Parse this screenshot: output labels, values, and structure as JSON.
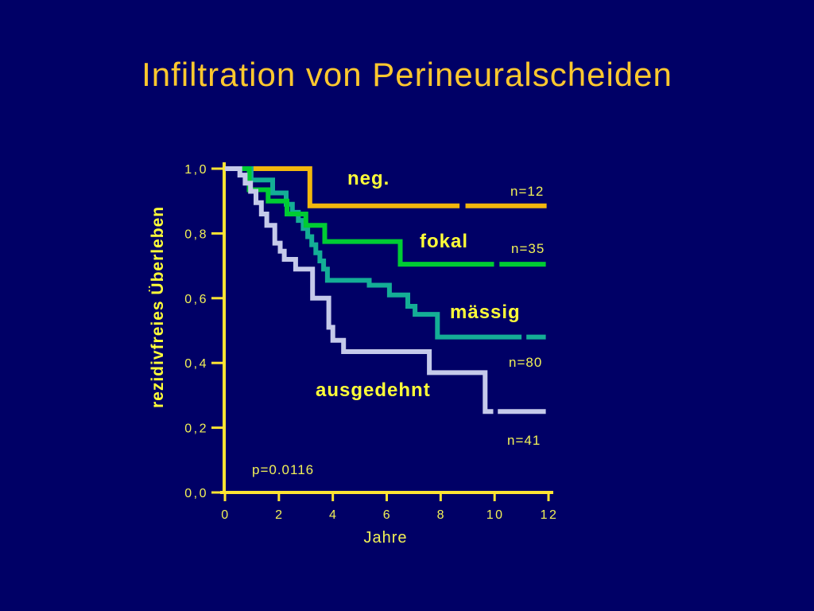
{
  "slide": {
    "title": "Infiltration von Perineuralscheiden",
    "background_color": "#000066",
    "title_color": "#FFC82E"
  },
  "chart_data": {
    "type": "line",
    "subtype": "kaplan-meier-step-curves",
    "title": "Infiltration von Perineuralscheiden",
    "xlabel": "Jahre",
    "ylabel": "rezidivfreies Überleben",
    "p_value": "p=0.0116",
    "xlim": [
      0,
      12
    ],
    "ylim": [
      0.0,
      1.0
    ],
    "grid": "off",
    "legend_position": "labels-inline-on-chart",
    "axis_color": "#FFE433",
    "tick_label_color": "#F2F156",
    "series_label_color": "#FFFF38",
    "x_ticks": [
      0,
      2,
      4,
      6,
      8,
      10,
      12
    ],
    "x_tick_labels": [
      "0",
      "2",
      "4",
      "6",
      "8",
      "10",
      "12"
    ],
    "y_ticks": [
      1.0,
      0.8,
      0.6,
      0.4,
      0.2,
      0.0
    ],
    "y_tick_labels": [
      "1,0",
      "0,8",
      "0,6",
      "0,4",
      "0,2",
      "0,0"
    ],
    "series": [
      {
        "name": "neg.",
        "n_label": "n=12",
        "color": "#F2B70D",
        "steps": [
          [
            0,
            1.0
          ],
          [
            3.15,
            0.885
          ]
        ],
        "end": 11.93,
        "censor_gap": [
          8.7,
          8.92
        ]
      },
      {
        "name": "fokal",
        "n_label": "n=35",
        "color": "#00CC33",
        "steps": [
          [
            0,
            1.0
          ],
          [
            0.9,
            0.935
          ],
          [
            1.6,
            0.9
          ],
          [
            2.3,
            0.86
          ],
          [
            3.0,
            0.825
          ],
          [
            3.7,
            0.775
          ],
          [
            6.5,
            0.705
          ]
        ],
        "end": 11.9,
        "censor_gap": [
          9.98,
          10.18
        ]
      },
      {
        "name": "mässig",
        "n_label": "n=80",
        "color": "#14AE96",
        "steps": [
          [
            0,
            1.0
          ],
          [
            0.97,
            0.965
          ],
          [
            1.77,
            0.925
          ],
          [
            2.27,
            0.89
          ],
          [
            2.5,
            0.865
          ],
          [
            2.72,
            0.84
          ],
          [
            2.9,
            0.815
          ],
          [
            3.07,
            0.79
          ],
          [
            3.22,
            0.765
          ],
          [
            3.37,
            0.74
          ],
          [
            3.52,
            0.715
          ],
          [
            3.66,
            0.69
          ],
          [
            3.8,
            0.655
          ],
          [
            5.35,
            0.64
          ],
          [
            6.1,
            0.61
          ],
          [
            6.78,
            0.575
          ],
          [
            7.05,
            0.55
          ],
          [
            7.88,
            0.48
          ]
        ],
        "end": 11.9,
        "censor_gap": [
          11.0,
          11.18
        ]
      },
      {
        "name": "ausgedehnt",
        "n_label": "n=41",
        "color": "#C5CAEA",
        "steps": [
          [
            0,
            1.0
          ],
          [
            0.55,
            0.98
          ],
          [
            0.75,
            0.955
          ],
          [
            0.95,
            0.93
          ],
          [
            1.15,
            0.895
          ],
          [
            1.35,
            0.86
          ],
          [
            1.55,
            0.825
          ],
          [
            1.85,
            0.77
          ],
          [
            2.05,
            0.745
          ],
          [
            2.2,
            0.72
          ],
          [
            2.62,
            0.69
          ],
          [
            3.25,
            0.6
          ],
          [
            3.85,
            0.51
          ],
          [
            4.0,
            0.47
          ],
          [
            4.4,
            0.435
          ],
          [
            7.58,
            0.37
          ],
          [
            9.65,
            0.25
          ]
        ],
        "end": 11.9,
        "censor_gap": [
          9.95,
          10.12
        ]
      }
    ]
  }
}
